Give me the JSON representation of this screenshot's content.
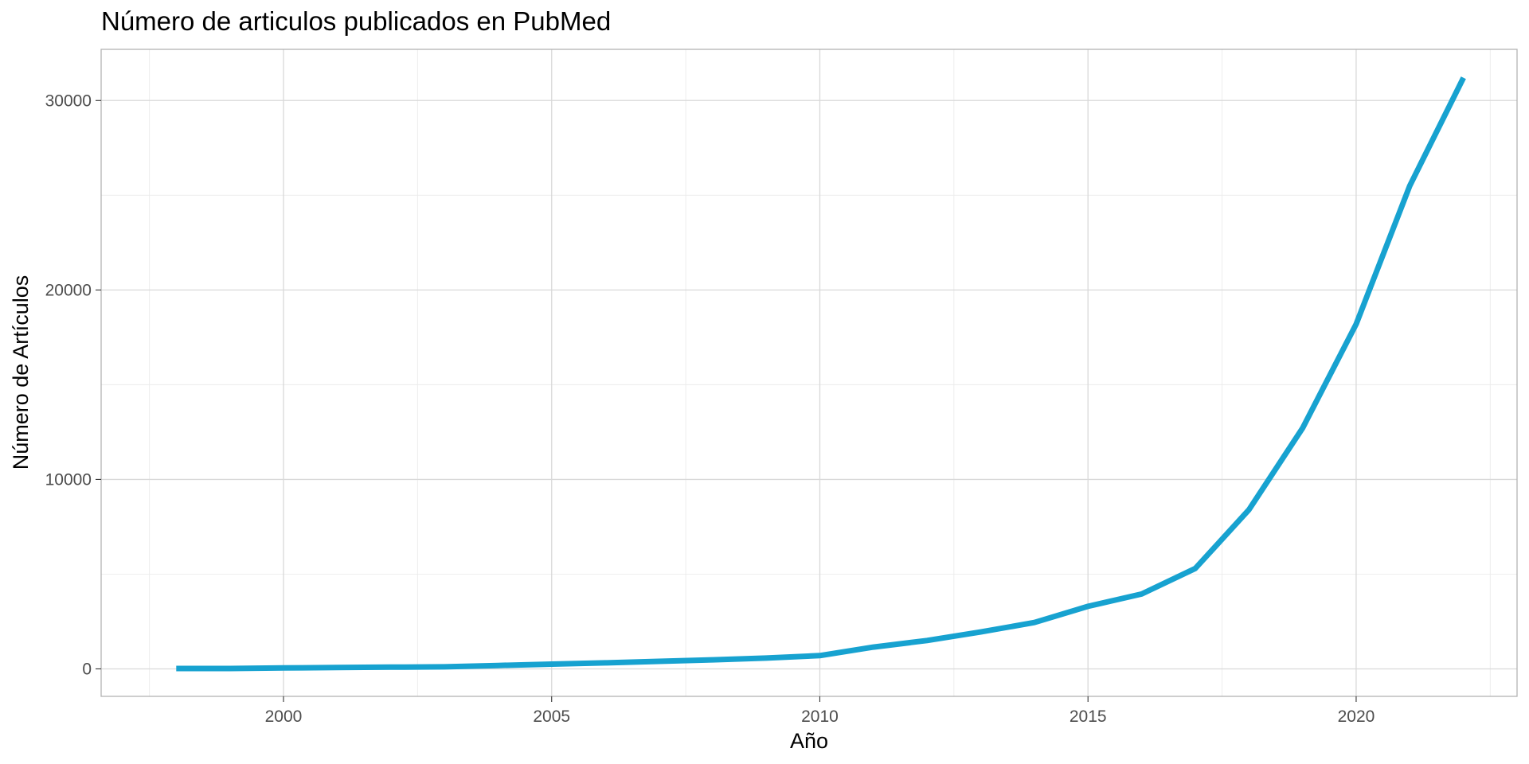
{
  "chart_data": {
    "type": "line",
    "title": "Número de articulos publicados en PubMed",
    "xlabel": "Año",
    "ylabel": "Número de Artículos",
    "xlim": [
      1996.6,
      2023.0
    ],
    "ylim": [
      -1450,
      32700
    ],
    "x_ticks": [
      2000,
      2005,
      2010,
      2015,
      2020
    ],
    "x_tick_labels": [
      "2000",
      "2005",
      "2010",
      "2015",
      "2020"
    ],
    "x_minor_ticks": [
      1997.5,
      2002.5,
      2007.5,
      2012.5,
      2017.5,
      2022.5
    ],
    "y_ticks": [
      0,
      10000,
      20000,
      30000
    ],
    "y_tick_labels": [
      "0",
      "10000",
      "20000",
      "30000"
    ],
    "y_minor_ticks": [
      5000,
      15000,
      25000
    ],
    "grid": true,
    "legend": "none",
    "series": [
      {
        "color": "#17a2d0",
        "x": [
          1998,
          1999,
          2000,
          2001,
          2002,
          2003,
          2004,
          2005,
          2006,
          2007,
          2008,
          2009,
          2010,
          2011,
          2012,
          2013,
          2014,
          2015,
          2016,
          2017,
          2018,
          2019,
          2020,
          2021,
          2022
        ],
        "values": [
          20,
          20,
          50,
          70,
          90,
          110,
          180,
          250,
          320,
          400,
          480,
          570,
          700,
          1150,
          1500,
          1950,
          2450,
          3300,
          3950,
          5300,
          8400,
          12700,
          18200,
          25500,
          31200
        ]
      }
    ]
  }
}
